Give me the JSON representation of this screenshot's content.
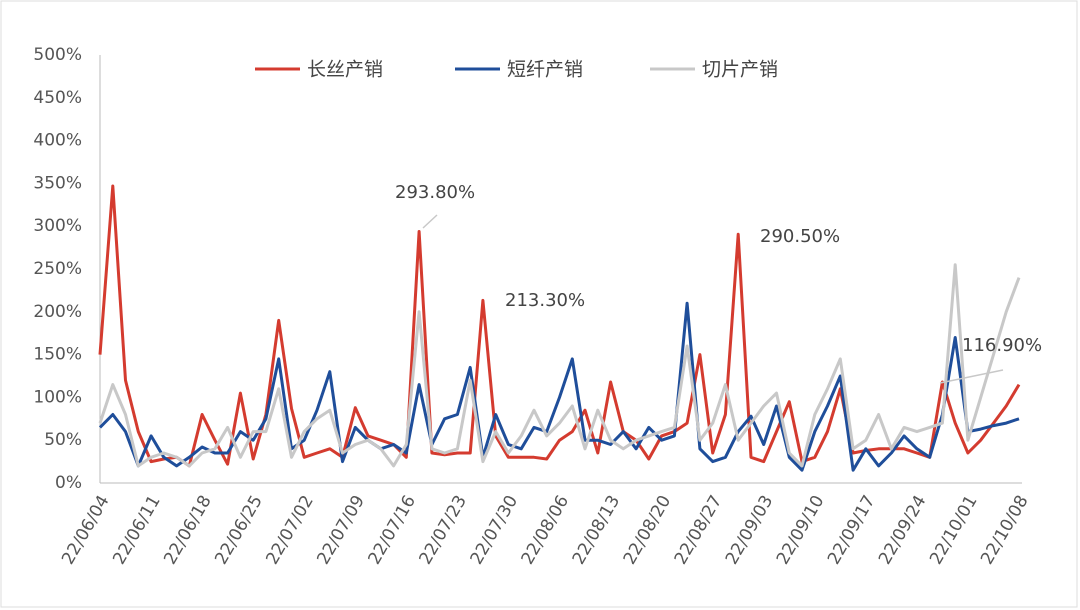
{
  "chart_data": {
    "type": "line",
    "categories": [
      "22/06/04",
      null,
      null,
      null,
      "22/06/11",
      null,
      null,
      null,
      "22/06/18",
      null,
      null,
      null,
      "22/06/25",
      null,
      null,
      null,
      "22/07/02",
      null,
      null,
      null,
      "22/07/09",
      null,
      null,
      null,
      "22/07/16",
      null,
      null,
      null,
      "22/07/23",
      null,
      null,
      null,
      "22/07/30",
      null,
      null,
      null,
      "22/08/06",
      null,
      null,
      null,
      "22/08/13",
      null,
      null,
      null,
      "22/08/20",
      null,
      null,
      null,
      "22/08/27",
      null,
      null,
      null,
      "22/09/03",
      null,
      null,
      null,
      "22/09/10",
      null,
      null,
      null,
      "22/09/17",
      null,
      null,
      null,
      "22/09/24",
      null,
      null,
      null,
      "22/10/01",
      null,
      null,
      null,
      "22/10/08"
    ],
    "series": [
      {
        "name": "长丝产销",
        "color": "#d43b2f",
        "values": [
          150,
          347,
          120,
          60,
          25,
          28,
          30,
          20,
          80,
          50,
          22,
          105,
          28,
          80,
          190,
          87,
          30,
          35,
          40,
          30,
          88,
          55,
          50,
          45,
          30,
          293.8,
          35,
          33,
          35,
          35,
          213.3,
          55,
          30,
          30,
          30,
          28,
          50,
          60,
          85,
          35,
          118,
          60,
          50,
          28,
          55,
          60,
          70,
          150,
          35,
          80,
          290.5,
          30,
          25,
          60,
          95,
          25,
          30,
          60,
          110,
          35,
          38,
          40,
          40,
          40,
          35,
          30,
          118,
          70,
          35,
          50,
          70,
          90,
          115
        ]
      },
      {
        "name": "短纤产销",
        "color": "#1f4e9a",
        "values": [
          65,
          80,
          60,
          20,
          55,
          30,
          20,
          30,
          42,
          35,
          35,
          60,
          50,
          75,
          145,
          40,
          50,
          85,
          130,
          25,
          65,
          50,
          40,
          45,
          35,
          115,
          45,
          75,
          80,
          135,
          30,
          80,
          45,
          40,
          65,
          60,
          100,
          145,
          50,
          50,
          45,
          60,
          40,
          65,
          50,
          55,
          210,
          40,
          25,
          30,
          60,
          78,
          45,
          90,
          30,
          15,
          60,
          90,
          125,
          15,
          40,
          20,
          35,
          55,
          40,
          30,
          80,
          170,
          60,
          63,
          67,
          70,
          75
        ]
      },
      {
        "name": "切片产销",
        "color": "#c8c8c8",
        "values": [
          70,
          115,
          80,
          20,
          30,
          35,
          30,
          20,
          35,
          40,
          65,
          30,
          60,
          60,
          110,
          30,
          60,
          75,
          85,
          35,
          45,
          50,
          40,
          20,
          45,
          200,
          40,
          35,
          40,
          120,
          25,
          60,
          35,
          55,
          85,
          55,
          70,
          90,
          40,
          85,
          50,
          40,
          50,
          55,
          60,
          65,
          160,
          50,
          70,
          115,
          50,
          70,
          90,
          105,
          35,
          20,
          80,
          110,
          145,
          40,
          50,
          80,
          40,
          65,
          60,
          65,
          70,
          255,
          50,
          100,
          150,
          200,
          240
        ]
      }
    ],
    "annotations": [
      "293.80%",
      "213.30%",
      "290.50%",
      "116.90%"
    ],
    "ylim": [
      0,
      500
    ],
    "yticks": [
      {
        "value": 0,
        "label": "0%"
      },
      {
        "value": 50,
        "label": "50%"
      },
      {
        "value": 100,
        "label": "100%"
      },
      {
        "value": 150,
        "label": "150%"
      },
      {
        "value": 200,
        "label": "200%"
      },
      {
        "value": 250,
        "label": "250%"
      },
      {
        "value": 300,
        "label": "300%"
      },
      {
        "value": 350,
        "label": "350%"
      },
      {
        "value": 400,
        "label": "400%"
      },
      {
        "value": 450,
        "label": "450%"
      },
      {
        "value": 500,
        "label": "500%"
      }
    ],
    "grid": false,
    "legend": "top"
  }
}
